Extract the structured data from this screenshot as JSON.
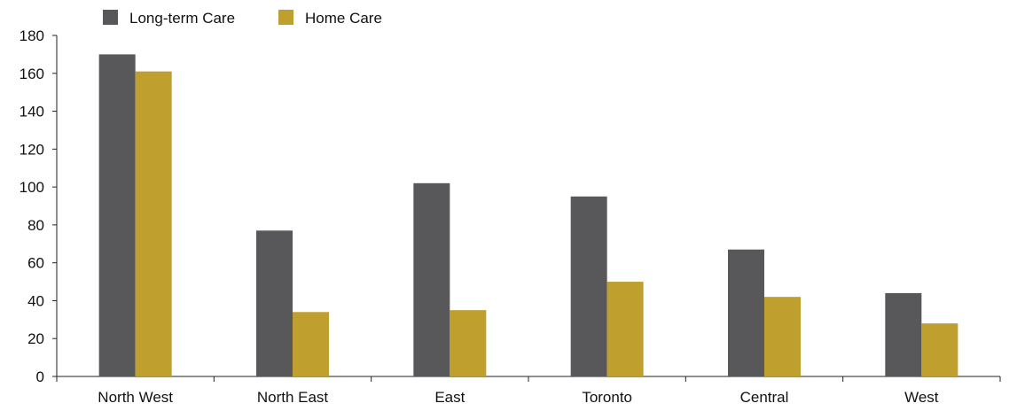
{
  "chart_data": {
    "type": "bar",
    "title": "",
    "xlabel": "",
    "ylabel": "",
    "categories": [
      "North West",
      "North East",
      "East",
      "Toronto",
      "Central",
      "West"
    ],
    "series": [
      {
        "name": "Long-term Care",
        "color": "#58585a",
        "values": [
          170,
          77,
          102,
          95,
          67,
          44
        ]
      },
      {
        "name": "Home Care",
        "color": "#bf9f2e",
        "values": [
          161,
          34,
          35,
          50,
          42,
          28
        ]
      }
    ],
    "ylim": [
      0,
      180
    ],
    "yticks": [
      0,
      20,
      40,
      60,
      80,
      100,
      120,
      140,
      160,
      180
    ],
    "grid": false,
    "legend_position": "top-left"
  }
}
